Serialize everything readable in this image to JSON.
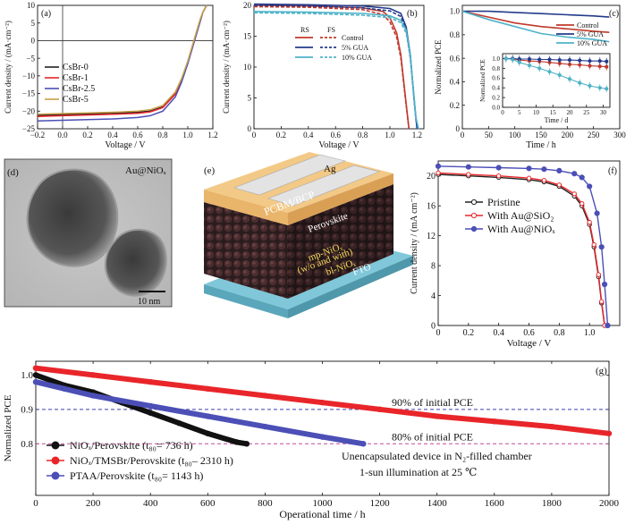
{
  "colors": {
    "black": "#111111",
    "red": "#e8262a",
    "blue": "#4b4fb6",
    "teal": "#4fb3c8",
    "gold": "#c8a24a",
    "navy": "#243b8c",
    "darkred": "#c0392b",
    "purple": "#6a4bbf"
  },
  "chart_data": [
    {
      "panel": "(a)",
      "type": "line",
      "xlabel": "Voltage / V",
      "ylabel": "Current density / (mA·cm⁻²)",
      "xlim": [
        -0.2,
        1.2
      ],
      "ylim": [
        -25,
        10
      ],
      "xticks": [
        -0.2,
        0.0,
        0.2,
        0.4,
        0.6,
        0.8,
        1.0,
        1.2
      ],
      "xtick_labels": [
        "−0.2",
        "0.0",
        "0.2",
        "0.4",
        "0.6",
        "0.8",
        "1.0",
        "1.2"
      ],
      "yticks": [
        10,
        5,
        0,
        -5,
        -10,
        -15,
        -20,
        -25
      ],
      "ytick_labels": [
        "10",
        "5",
        "0",
        "−5",
        "−10",
        "−15",
        "−20",
        "−25"
      ],
      "legend": "bottom-left",
      "series": [
        {
          "name": "CsBr-0",
          "color": "#222222",
          "x": [
            -0.2,
            0,
            0.2,
            0.4,
            0.6,
            0.7,
            0.8,
            0.9,
            0.95,
            1.0,
            1.05,
            1.1,
            1.12,
            1.15
          ],
          "y": [
            -21.2,
            -21.0,
            -20.8,
            -20.6,
            -20.3,
            -20.0,
            -18.8,
            -15,
            -11,
            -6,
            0,
            6,
            8,
            10
          ]
        },
        {
          "name": "CsBr-1",
          "color": "#e8262a",
          "x": [
            -0.2,
            0,
            0.2,
            0.4,
            0.6,
            0.7,
            0.8,
            0.9,
            0.95,
            1.0,
            1.05,
            1.1,
            1.12,
            1.15
          ],
          "y": [
            -21.5,
            -21.3,
            -21.1,
            -20.9,
            -20.6,
            -20.2,
            -19.0,
            -15.2,
            -11.2,
            -6.2,
            -0.3,
            5.7,
            8,
            10
          ]
        },
        {
          "name": "CsBr-2.5",
          "color": "#4b4fb6",
          "x": [
            -0.2,
            0,
            0.2,
            0.4,
            0.6,
            0.7,
            0.8,
            0.9,
            0.95,
            1.0,
            1.05,
            1.1,
            1.12,
            1.15
          ],
          "y": [
            -22.8,
            -22.6,
            -22.4,
            -22.2,
            -21.8,
            -21.3,
            -20.0,
            -16.0,
            -11.8,
            -6.5,
            -0.5,
            5.5,
            8,
            10
          ]
        },
        {
          "name": "CsBr-5",
          "color": "#c8a24a",
          "x": [
            -0.2,
            0,
            0.2,
            0.4,
            0.6,
            0.7,
            0.8,
            0.9,
            0.95,
            1.0,
            1.05,
            1.1,
            1.12,
            1.15
          ],
          "y": [
            -20.9,
            -20.7,
            -20.5,
            -20.3,
            -20.0,
            -19.6,
            -18.4,
            -14.6,
            -10.8,
            -5.8,
            0.2,
            6.2,
            8,
            10
          ]
        }
      ]
    },
    {
      "panel": "(b)",
      "type": "line",
      "xlabel": "Voltage / V",
      "ylabel": "Current density / (mA·cm⁻²)",
      "xlim": [
        0,
        1.25
      ],
      "ylim": [
        0,
        20
      ],
      "xticks": [
        0,
        0.2,
        0.4,
        0.6,
        0.8,
        1.0,
        1.2
      ],
      "xtick_labels": [
        "0",
        "0.2",
        "0.4",
        "0.6",
        "0.8",
        "1.0",
        "1.2"
      ],
      "yticks": [
        0,
        5,
        10,
        15,
        20
      ],
      "ytick_labels": [
        "0",
        "5",
        "10",
        "15",
        "20"
      ],
      "legend_headers": [
        "RS",
        "FS"
      ],
      "legend": "center-right",
      "series": [
        {
          "name": "Control",
          "color": "#c0392b",
          "scan": "RS",
          "x": [
            0,
            0.4,
            0.8,
            0.95,
            1.0,
            1.05,
            1.08,
            1.1,
            1.12,
            1.14
          ],
          "y": [
            20.0,
            19.9,
            19.6,
            19.0,
            18.0,
            15.5,
            12,
            8,
            4,
            0
          ]
        },
        {
          "name": "Control",
          "color": "#c0392b",
          "scan": "FS",
          "x": [
            0,
            0.4,
            0.8,
            0.95,
            1.0,
            1.05,
            1.08,
            1.1,
            1.12,
            1.14
          ],
          "y": [
            19.8,
            19.7,
            19.3,
            18.5,
            17.3,
            14.8,
            11.5,
            7.6,
            3.8,
            0
          ]
        },
        {
          "name": "5% GUA",
          "color": "#243b8c",
          "scan": "RS",
          "x": [
            0,
            0.4,
            0.8,
            1.0,
            1.08,
            1.12,
            1.15,
            1.17,
            1.19,
            1.2
          ],
          "y": [
            20.2,
            20.1,
            19.9,
            19.5,
            18.7,
            16.5,
            12,
            7,
            2,
            0
          ]
        },
        {
          "name": "5% GUA",
          "color": "#243b8c",
          "scan": "FS",
          "x": [
            0,
            0.4,
            0.8,
            1.0,
            1.08,
            1.12,
            1.15,
            1.17,
            1.19,
            1.2
          ],
          "y": [
            20.0,
            19.9,
            19.6,
            19.1,
            18.2,
            16.0,
            11.5,
            6.6,
            1.8,
            0
          ]
        },
        {
          "name": "10% GUA",
          "color": "#4fb3c8",
          "scan": "RS",
          "x": [
            0,
            0.4,
            0.8,
            1.0,
            1.08,
            1.12,
            1.15,
            1.17,
            1.19,
            1.21
          ],
          "y": [
            19.0,
            18.9,
            18.7,
            18.3,
            17.6,
            16.0,
            12,
            7,
            2,
            0
          ]
        },
        {
          "name": "10% GUA",
          "color": "#4fb3c8",
          "scan": "FS",
          "x": [
            0,
            0.4,
            0.8,
            1.0,
            1.08,
            1.12,
            1.15,
            1.17,
            1.19,
            1.21
          ],
          "y": [
            18.8,
            18.7,
            18.4,
            18.0,
            17.2,
            15.5,
            11.6,
            6.6,
            1.8,
            0
          ]
        }
      ]
    },
    {
      "panel": "(c)",
      "type": "line",
      "xlabel": "Time / h",
      "ylabel": "Normalized PCE",
      "xlim": [
        0,
        300
      ],
      "ylim": [
        0,
        1.05
      ],
      "xticks": [
        0,
        50,
        100,
        150,
        200,
        250,
        300
      ],
      "xtick_labels": [
        "0",
        "50",
        "100",
        "150",
        "200",
        "250",
        "300"
      ],
      "yticks": [
        0,
        0.2,
        0.4,
        0.6,
        0.8,
        1.0
      ],
      "ytick_labels": [
        "0",
        "0.2",
        "0.4",
        "0.6",
        "0.8",
        "1.0"
      ],
      "legend": "top-right",
      "series": [
        {
          "name": "Control",
          "color": "#c0392b",
          "x": [
            0,
            50,
            100,
            150,
            200,
            250,
            280
          ],
          "y": [
            1.0,
            0.95,
            0.9,
            0.87,
            0.85,
            0.83,
            0.82
          ]
        },
        {
          "name": "5% GUA",
          "color": "#243b8c",
          "x": [
            0,
            50,
            100,
            150,
            200,
            250,
            280
          ],
          "y": [
            1.0,
            1.0,
            0.99,
            0.98,
            0.97,
            0.96,
            0.95
          ]
        },
        {
          "name": "10% GUA",
          "color": "#4fb3c8",
          "x": [
            0,
            50,
            100,
            150,
            200,
            250,
            280
          ],
          "y": [
            1.0,
            0.93,
            0.87,
            0.81,
            0.78,
            0.76,
            0.74
          ]
        }
      ],
      "inset": {
        "xlabel": "Time / d",
        "ylabel": "Normalized PCE",
        "xlim": [
          0,
          32
        ],
        "ylim": [
          0,
          1.1
        ],
        "xticks": [
          0,
          5,
          10,
          15,
          20,
          25,
          30
        ],
        "xtick_labels": [
          "0",
          "5",
          "10",
          "15",
          "20",
          "25",
          "30"
        ],
        "yticks": [
          0,
          0.2,
          0.4,
          0.6,
          0.8,
          1.0
        ],
        "ytick_labels": [
          "0.0",
          "0.2",
          "0.4",
          "0.6",
          "0.8",
          "1.0"
        ],
        "series": [
          {
            "name": "Control",
            "color": "#c0392b",
            "x": [
              1,
              3,
              5,
              8,
              11,
              14,
              17,
              20,
              23,
              26,
              29,
              31
            ],
            "y": [
              1.0,
              0.99,
              0.97,
              0.95,
              0.94,
              0.92,
              0.9,
              0.88,
              0.87,
              0.85,
              0.84,
              0.83
            ]
          },
          {
            "name": "5% GUA",
            "color": "#243b8c",
            "x": [
              1,
              3,
              5,
              8,
              11,
              14,
              17,
              20,
              23,
              26,
              29,
              31
            ],
            "y": [
              1.0,
              1.0,
              0.99,
              0.99,
              0.98,
              0.98,
              0.97,
              0.97,
              0.96,
              0.95,
              0.95,
              0.94
            ]
          },
          {
            "name": "10% GUA",
            "color": "#4fb3c8",
            "x": [
              1,
              3,
              5,
              8,
              11,
              14,
              17,
              20,
              23,
              26,
              29,
              31
            ],
            "y": [
              1.0,
              0.98,
              0.92,
              0.86,
              0.8,
              0.73,
              0.66,
              0.58,
              0.5,
              0.44,
              0.4,
              0.38
            ]
          }
        ]
      }
    },
    {
      "panel": "(f)",
      "type": "line",
      "xlabel": "Voltage / V",
      "ylabel": "Current density / (mA cm⁻²)",
      "xlim": [
        0,
        1.2
      ],
      "ylim": [
        0,
        22
      ],
      "xticks": [
        0,
        0.2,
        0.4,
        0.6,
        0.8,
        1.0
      ],
      "xtick_labels": [
        "0",
        "0.2",
        "0.4",
        "0.6",
        "0.8",
        "1.0"
      ],
      "yticks": [
        0,
        4,
        8,
        12,
        16,
        20
      ],
      "ytick_labels": [
        "0",
        "4",
        "8",
        "12",
        "16",
        "20"
      ],
      "legend": "center",
      "series": [
        {
          "name": "Pristine",
          "color": "#222222",
          "x": [
            0,
            0.2,
            0.4,
            0.6,
            0.7,
            0.8,
            0.9,
            0.95,
            1.0,
            1.03,
            1.06,
            1.08,
            1.1
          ],
          "y": [
            20.2,
            20.0,
            19.8,
            19.5,
            19.2,
            18.6,
            17.3,
            16.0,
            13.5,
            10.5,
            6.5,
            3.0,
            0
          ]
        },
        {
          "name": "With Au@SiO₂",
          "color": "#e8262a",
          "x": [
            0,
            0.2,
            0.4,
            0.6,
            0.7,
            0.8,
            0.9,
            0.95,
            1.0,
            1.03,
            1.06,
            1.08,
            1.1
          ],
          "y": [
            20.4,
            20.2,
            20.0,
            19.7,
            19.4,
            18.8,
            17.6,
            16.3,
            13.8,
            10.8,
            6.8,
            3.2,
            0
          ]
        },
        {
          "name": "With Au@NiOₓ",
          "color": "#4b4fb6",
          "x": [
            0,
            0.2,
            0.4,
            0.6,
            0.7,
            0.8,
            0.9,
            0.95,
            1.0,
            1.05,
            1.08,
            1.1,
            1.12
          ],
          "y": [
            21.3,
            21.2,
            21.1,
            21.0,
            20.9,
            20.7,
            20.3,
            19.8,
            18.6,
            15.0,
            10.5,
            5.5,
            0
          ]
        }
      ]
    },
    {
      "panel": "(g)",
      "type": "line",
      "xlabel": "Operational time / h",
      "ylabel": "Normalized PCE",
      "xlim": [
        0,
        2000
      ],
      "ylim": [
        0.65,
        1.04
      ],
      "xticks": [
        0,
        200,
        400,
        600,
        800,
        1000,
        1200,
        1400,
        1600,
        1800,
        2000
      ],
      "xtick_labels": [
        "0",
        "200",
        "400",
        "600",
        "800",
        "1000",
        "1200",
        "1400",
        "1600",
        "1800",
        "2000"
      ],
      "yticks": [
        0.8,
        0.9,
        1.0
      ],
      "ytick_labels": [
        "0.8",
        "0.9",
        "1.0"
      ],
      "legend": "bottom-left",
      "reference_lines": [
        {
          "y": 0.9,
          "label": "90% of initial PCE"
        },
        {
          "y": 0.8,
          "label": "80% of initial PCE"
        }
      ],
      "annotation": [
        "Unencapsulated device in N₂-filled chamber",
        "1-sun illumination at 25 ℃"
      ],
      "series": [
        {
          "name": "NiOₓ/Perovskite (t₈₀= 736 h)",
          "color": "#111111",
          "x": [
            0,
            100,
            200,
            300,
            400,
            500,
            600,
            700,
            736
          ],
          "y": [
            1.0,
            0.97,
            0.95,
            0.92,
            0.89,
            0.86,
            0.83,
            0.805,
            0.8
          ]
        },
        {
          "name": "NiOₓ/TMSBr/Perovskite (t₈₀– 2310 h)",
          "color": "#e8262a",
          "x": [
            0,
            200,
            400,
            600,
            800,
            1000,
            1200,
            1400,
            1600,
            1800,
            2000
          ],
          "y": [
            1.02,
            1.0,
            0.98,
            0.96,
            0.94,
            0.92,
            0.9,
            0.88,
            0.865,
            0.85,
            0.83
          ]
        },
        {
          "name": "PTAA/Perovskite (t₈₀= 1143 h)",
          "color": "#4b4fb6",
          "x": [
            0,
            100,
            200,
            400,
            600,
            800,
            1000,
            1143
          ],
          "y": [
            0.98,
            0.96,
            0.94,
            0.91,
            0.88,
            0.85,
            0.82,
            0.8
          ]
        }
      ]
    }
  ],
  "panel_d": {
    "label": "(d)",
    "caption": "Au@NiOₓ",
    "scalebar": "10 nm"
  },
  "panel_e": {
    "label": "(e)",
    "layers": [
      "Ag",
      "PCBM/BCP",
      "Perovskite",
      "mp-NiOₓ",
      "(w/o and with)",
      "bl-NiOₓ",
      "FTO"
    ]
  }
}
